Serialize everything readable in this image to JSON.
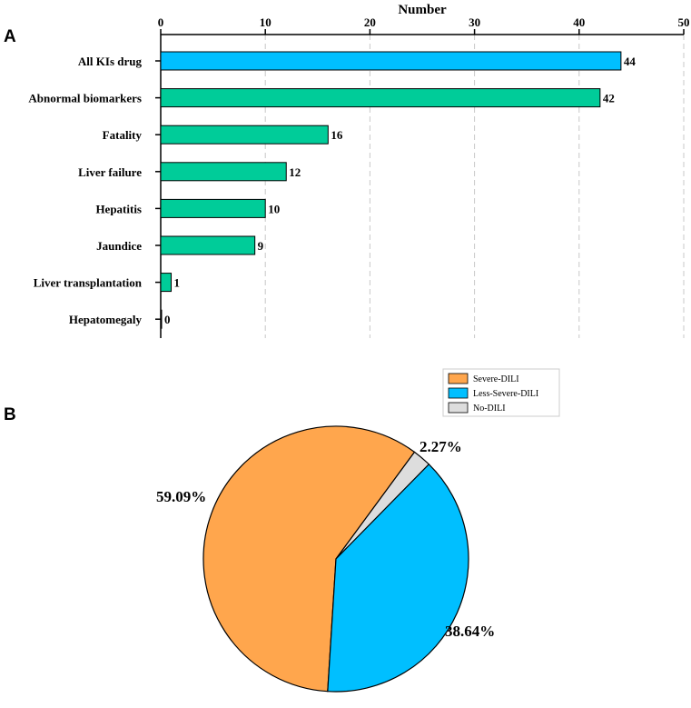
{
  "panels": {
    "a": "A",
    "b": "B"
  },
  "chart_data": [
    {
      "type": "bar",
      "orientation": "horizontal",
      "title": "Number",
      "xlabel": "Number",
      "xlim": [
        0,
        50
      ],
      "xticks": [
        0,
        10,
        20,
        30,
        40,
        50
      ],
      "grid": "vertical dashed",
      "categories": [
        "All KIs drug",
        "Abnormal biomarkers",
        "Fatality",
        "Liver failure",
        "Hepatitis",
        "Jaundice",
        "Liver transplantation",
        "Hepatomegaly"
      ],
      "values": [
        44,
        42,
        16,
        12,
        10,
        9,
        1,
        0
      ],
      "colors": [
        "#00BFFF",
        "#00CC99",
        "#00CC99",
        "#00CC99",
        "#00CC99",
        "#00CC99",
        "#00CC99",
        "#00CC99"
      ]
    },
    {
      "type": "pie",
      "legend_position": "top-right",
      "labels": [
        "Severe-DILI",
        "Less-Severe-DILI",
        "No-DILI"
      ],
      "values": [
        59.09,
        38.64,
        2.27
      ],
      "value_labels": [
        "59.09%",
        "38.64%",
        "2.27%"
      ],
      "colors": [
        "#FFA64D",
        "#00BFFF",
        "#DDDDDD"
      ]
    }
  ]
}
